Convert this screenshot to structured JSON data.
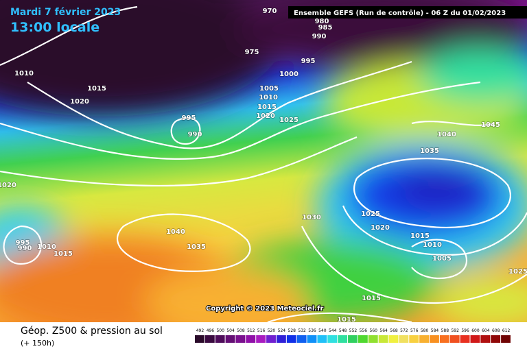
{
  "header": {
    "date": "Mardi 7 février 2023",
    "time": "13:00 locale",
    "run": "Ensemble GEFS  (Run de contrôle)  -  06 Z du 01/02/2023"
  },
  "copyright": "Copyright © 2023 Meteociel.fr",
  "footer": {
    "title": "Géop. Z500 & pression au sol",
    "lead": "(+ 150h)"
  },
  "isobar_labels": [
    "970",
    "980",
    "985",
    "990",
    "975",
    "995",
    "1000",
    "1005",
    "1010",
    "1015",
    "1020",
    "1025",
    "1010",
    "1015",
    "1020",
    "995",
    "990",
    "1020",
    "995",
    "990",
    "1010",
    "1015",
    "1040",
    "1035",
    "1030",
    "1040",
    "1045",
    "1035",
    "1025",
    "1020",
    "1015",
    "1010",
    "1005",
    "1025",
    "1015",
    "1015"
  ],
  "scale": {
    "labels": [
      "492",
      "496",
      "500",
      "504",
      "508",
      "512",
      "516",
      "520",
      "524",
      "528",
      "532",
      "536",
      "540",
      "544",
      "548",
      "552",
      "556",
      "560",
      "564",
      "568",
      "572",
      "576",
      "580",
      "584",
      "588",
      "592",
      "596",
      "600",
      "604",
      "608",
      "612"
    ],
    "colors": [
      "#2a0a2a",
      "#3a0a40",
      "#4e0c5a",
      "#640e74",
      "#7a108e",
      "#9010a8",
      "#a81cc0",
      "#7020d0",
      "#3020d8",
      "#1030e8",
      "#1060f0",
      "#1090f8",
      "#20c0f8",
      "#30e0e0",
      "#30e0a0",
      "#30d060",
      "#50d830",
      "#90e030",
      "#c8e838",
      "#f0f040",
      "#f0e060",
      "#f8d040",
      "#f8b030",
      "#f89020",
      "#f87020",
      "#f05020",
      "#e83020",
      "#d01818",
      "#b01010",
      "#900808",
      "#700404"
    ]
  }
}
